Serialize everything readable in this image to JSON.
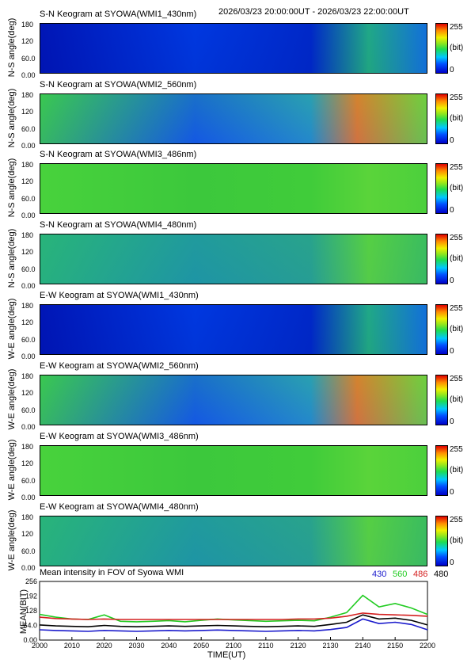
{
  "header": {
    "date_range": "2026/03/23 20:00:00UT - 2026/03/23 22:00:00UT"
  },
  "y_tick_labels": [
    "180",
    "120",
    "60.0",
    "0.00"
  ],
  "colorbar": {
    "max_label": "255",
    "unit_label": "(bit)",
    "min_label": "0"
  },
  "colors": {
    "c430": "#1a1acc",
    "c560": "#22cc22",
    "c486": "#d42020",
    "c480": "#000000"
  },
  "chart_data": [
    {
      "type": "heatmap",
      "title": "S-N Keogram at SYOWA(WMI1_430nm)",
      "ylabel": "N-S angle(deg)",
      "ylim": [
        0,
        180
      ],
      "color_range": [
        0,
        255
      ],
      "colorbar_unit": "(bit)",
      "intensity": "low"
    },
    {
      "type": "heatmap",
      "title": "S-N Keogram at SYOWA(WMI2_560nm)",
      "ylabel": "N-S angle(deg)",
      "ylim": [
        0,
        180
      ],
      "color_range": [
        0,
        255
      ],
      "colorbar_unit": "(bit)",
      "intensity": "high"
    },
    {
      "type": "heatmap",
      "title": "S-N Keogram at SYOWA(WMI3_486nm)",
      "ylabel": "N-S angle(deg)",
      "ylim": [
        0,
        180
      ],
      "color_range": [
        0,
        255
      ],
      "colorbar_unit": "(bit)",
      "intensity": "flat"
    },
    {
      "type": "heatmap",
      "title": "S-N Keogram at SYOWA(WMI4_480nm)",
      "ylabel": "N-S angle(deg)",
      "ylim": [
        0,
        180
      ],
      "color_range": [
        0,
        255
      ],
      "colorbar_unit": "(bit)",
      "intensity": "mid"
    },
    {
      "type": "heatmap",
      "title": "E-W Keogram at SYOWA(WMI1_430nm)",
      "ylabel": "W-E angle(deg)",
      "ylim": [
        0,
        180
      ],
      "color_range": [
        0,
        255
      ],
      "colorbar_unit": "(bit)",
      "intensity": "low"
    },
    {
      "type": "heatmap",
      "title": "E-W Keogram at SYOWA(WMI2_560nm)",
      "ylabel": "W-E angle(deg)",
      "ylim": [
        0,
        180
      ],
      "color_range": [
        0,
        255
      ],
      "colorbar_unit": "(bit)",
      "intensity": "high"
    },
    {
      "type": "heatmap",
      "title": "E-W Keogram at SYOWA(WMI3_486nm)",
      "ylabel": "W-E angle(deg)",
      "ylim": [
        0,
        180
      ],
      "color_range": [
        0,
        255
      ],
      "colorbar_unit": "(bit)",
      "intensity": "flat"
    },
    {
      "type": "heatmap",
      "title": "E-W Keogram at SYOWA(WMI4_480nm)",
      "ylabel": "W-E angle(deg)",
      "ylim": [
        0,
        180
      ],
      "color_range": [
        0,
        255
      ],
      "colorbar_unit": "(bit)",
      "intensity": "mid"
    },
    {
      "type": "line",
      "title": "Mean intensity in FOV of Syowa WMI",
      "xlabel": "TIME(UT)",
      "ylabel": "MEAN(BIT)",
      "xlim": [
        2000,
        2200
      ],
      "ylim": [
        0,
        256
      ],
      "x_ticks": [
        "2000",
        "2010",
        "2020",
        "2030",
        "2040",
        "2050",
        "2100",
        "2110",
        "2120",
        "2130",
        "2140",
        "2150",
        "2200"
      ],
      "y_ticks": [
        "256",
        "192",
        "128",
        "64.0",
        "0.00"
      ],
      "x": [
        0,
        5,
        10,
        15,
        20,
        25,
        30,
        35,
        40,
        45,
        50,
        55,
        60,
        65,
        70,
        75,
        80,
        85,
        90,
        95,
        100,
        105,
        110,
        115,
        120
      ],
      "series": [
        {
          "name": "430",
          "color": "#1a1acc",
          "values": [
            45,
            42,
            40,
            38,
            42,
            40,
            38,
            40,
            42,
            40,
            42,
            44,
            42,
            40,
            38,
            40,
            42,
            40,
            46,
            55,
            92,
            72,
            78,
            68,
            45
          ]
        },
        {
          "name": "560",
          "color": "#22cc22",
          "values": [
            112,
            100,
            92,
            90,
            110,
            82,
            80,
            82,
            85,
            80,
            86,
            92,
            88,
            85,
            82,
            84,
            86,
            84,
            100,
            120,
            195,
            145,
            160,
            140,
            112
          ]
        },
        {
          "name": "486",
          "color": "#d42020",
          "values": [
            100,
            94,
            92,
            90,
            92,
            90,
            90,
            90,
            90,
            90,
            90,
            90,
            90,
            90,
            90,
            90,
            92,
            92,
            96,
            104,
            118,
            112,
            110,
            108,
            104
          ]
        },
        {
          "name": "480",
          "color": "#000000",
          "values": [
            66,
            62,
            60,
            58,
            64,
            60,
            58,
            60,
            62,
            60,
            62,
            64,
            62,
            60,
            58,
            60,
            62,
            60,
            68,
            78,
            110,
            92,
            96,
            86,
            66
          ]
        }
      ]
    }
  ]
}
